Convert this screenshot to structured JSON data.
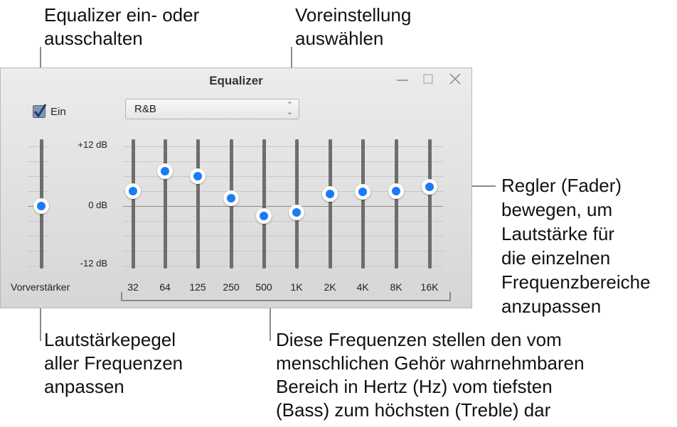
{
  "annotations": {
    "toggle": [
      "Equalizer ein- oder",
      "ausschalten"
    ],
    "preset": [
      "Voreinstellung",
      "auswählen"
    ],
    "faders": [
      "Regler (Fader)",
      "bewegen, um",
      "Lautstärke für",
      "die einzelnen",
      "Frequenzbereiche",
      "anzupassen"
    ],
    "preamp": [
      "Lautstärkepegel",
      "aller Frequenzen",
      "anpassen"
    ],
    "frequencies": [
      "Diese Frequenzen stellen den vom",
      "menschlichen Gehör wahrnehmbaren",
      "Bereich in Hertz (Hz) vom tiefsten",
      "(Bass) zum höchsten (Treble) dar"
    ]
  },
  "window": {
    "title": "Equalizer",
    "buttons": {
      "minimize": "minimize-icon",
      "maximize": "maximize-icon",
      "close": "close-icon"
    },
    "enable_checkbox": {
      "label": "Ein",
      "checked": true
    },
    "preset_select": {
      "value": "R&B"
    },
    "scale": {
      "top": "+12 dB",
      "mid": "0 dB",
      "bottom": "-12 dB",
      "min_db": -12,
      "max_db": 12
    },
    "preamp": {
      "label": "Vorverstärker",
      "value_db": 0
    },
    "bands": [
      {
        "label": "32",
        "value_db": 3
      },
      {
        "label": "64",
        "value_db": 7
      },
      {
        "label": "125",
        "value_db": 6
      },
      {
        "label": "250",
        "value_db": 1.6
      },
      {
        "label": "500",
        "value_db": -2
      },
      {
        "label": "1K",
        "value_db": -1.3
      },
      {
        "label": "2K",
        "value_db": 2.4
      },
      {
        "label": "4K",
        "value_db": 2.9
      },
      {
        "label": "8K",
        "value_db": 3
      },
      {
        "label": "16K",
        "value_db": 3.9
      }
    ],
    "colors": {
      "knob": "#1a7cf5",
      "track": "#6d6d6d"
    }
  }
}
